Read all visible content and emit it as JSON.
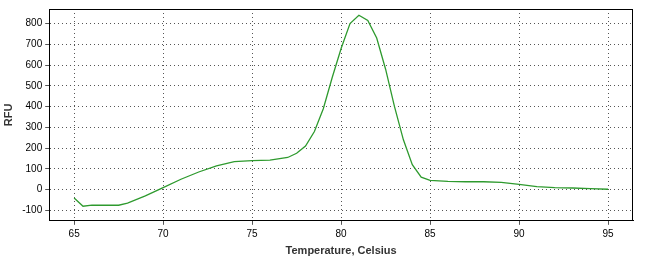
{
  "chart_data": {
    "type": "line",
    "x_label": "Temperature, Celsius",
    "y_label": "RFU",
    "x": [
      65,
      65.5,
      66,
      67,
      67.5,
      68,
      69,
      70,
      71,
      72,
      73,
      74,
      75,
      76,
      77,
      77.5,
      78,
      78.5,
      79,
      79.5,
      80,
      80.5,
      81,
      81.5,
      82,
      82.5,
      83,
      83.5,
      84,
      84.5,
      85,
      86,
      87,
      88,
      89,
      90,
      91,
      92,
      93,
      94,
      95
    ],
    "values": [
      -40,
      -80,
      -75,
      -75,
      -75,
      -65,
      -30,
      10,
      50,
      85,
      115,
      135,
      140,
      142,
      155,
      175,
      210,
      280,
      390,
      540,
      680,
      800,
      840,
      815,
      730,
      580,
      400,
      240,
      120,
      60,
      45,
      40,
      38,
      38,
      35,
      25,
      15,
      10,
      8,
      5,
      2
    ],
    "color": "#2e9a2e",
    "marker": "none",
    "xlim": [
      63.6,
      96.4
    ],
    "xticks": [
      65,
      70,
      75,
      80,
      85,
      90,
      95
    ],
    "ylim": [
      -150,
      870
    ],
    "yticks": [
      -100,
      0,
      100,
      200,
      300,
      400,
      500,
      600,
      700,
      800
    ],
    "grid": true
  }
}
